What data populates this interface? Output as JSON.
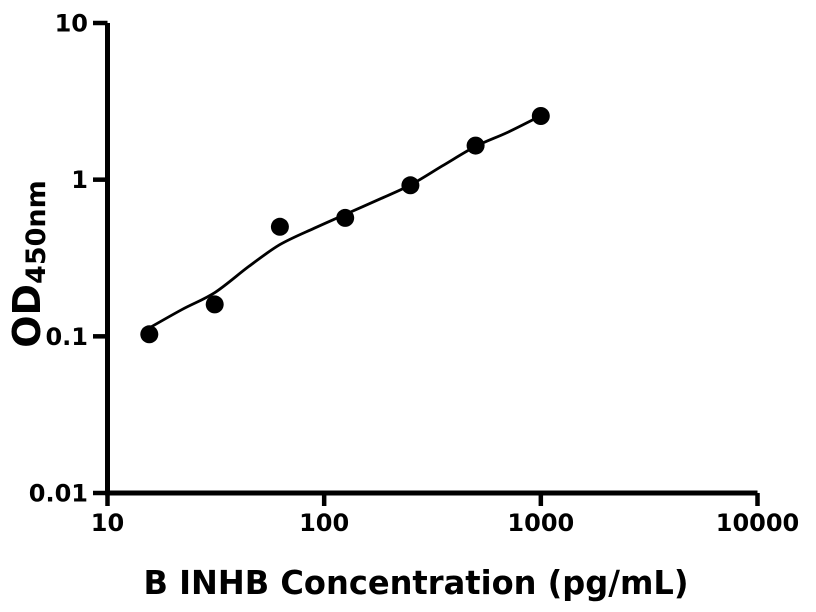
{
  "figure": {
    "background_color": "#ffffff",
    "foreground_color": "#000000"
  },
  "chart_data": {
    "type": "scatter",
    "title": "",
    "xlabel": "B INHB Concentration (pg/mL)",
    "ylabel_main": "OD",
    "ylabel_sub": "450nm",
    "x_scale": "log10",
    "y_scale": "log10",
    "xlim": [
      10,
      10000
    ],
    "ylim": [
      0.01,
      10
    ],
    "grid": false,
    "legend": "none",
    "x_ticks": [
      {
        "value": 10,
        "label": "10"
      },
      {
        "value": 100,
        "label": "100"
      },
      {
        "value": 1000,
        "label": "1000"
      },
      {
        "value": 10000,
        "label": "10000"
      }
    ],
    "y_ticks": [
      {
        "value": 10,
        "label": "10"
      },
      {
        "value": 1,
        "label": "1"
      },
      {
        "value": 0.1,
        "label": "0.1"
      },
      {
        "value": 0.01,
        "label": "0.01"
      }
    ],
    "series": [
      {
        "name": "standard-points",
        "type": "scatter",
        "marker": "filled-circle",
        "color": "#000000",
        "x": [
          15.6,
          31.25,
          62.5,
          125,
          250,
          500,
          1000
        ],
        "y": [
          0.103,
          0.16,
          0.5,
          0.57,
          0.92,
          1.65,
          2.55
        ]
      },
      {
        "name": "fit-curve",
        "type": "line",
        "color": "#000000",
        "x": [
          14.7,
          22,
          31.25,
          45,
          62.5,
          90,
          125,
          180,
          250,
          350,
          500,
          700,
          1000
        ],
        "y": [
          0.108,
          0.148,
          0.19,
          0.28,
          0.385,
          0.49,
          0.6,
          0.75,
          0.925,
          1.22,
          1.63,
          2.0,
          2.56
        ]
      }
    ]
  }
}
